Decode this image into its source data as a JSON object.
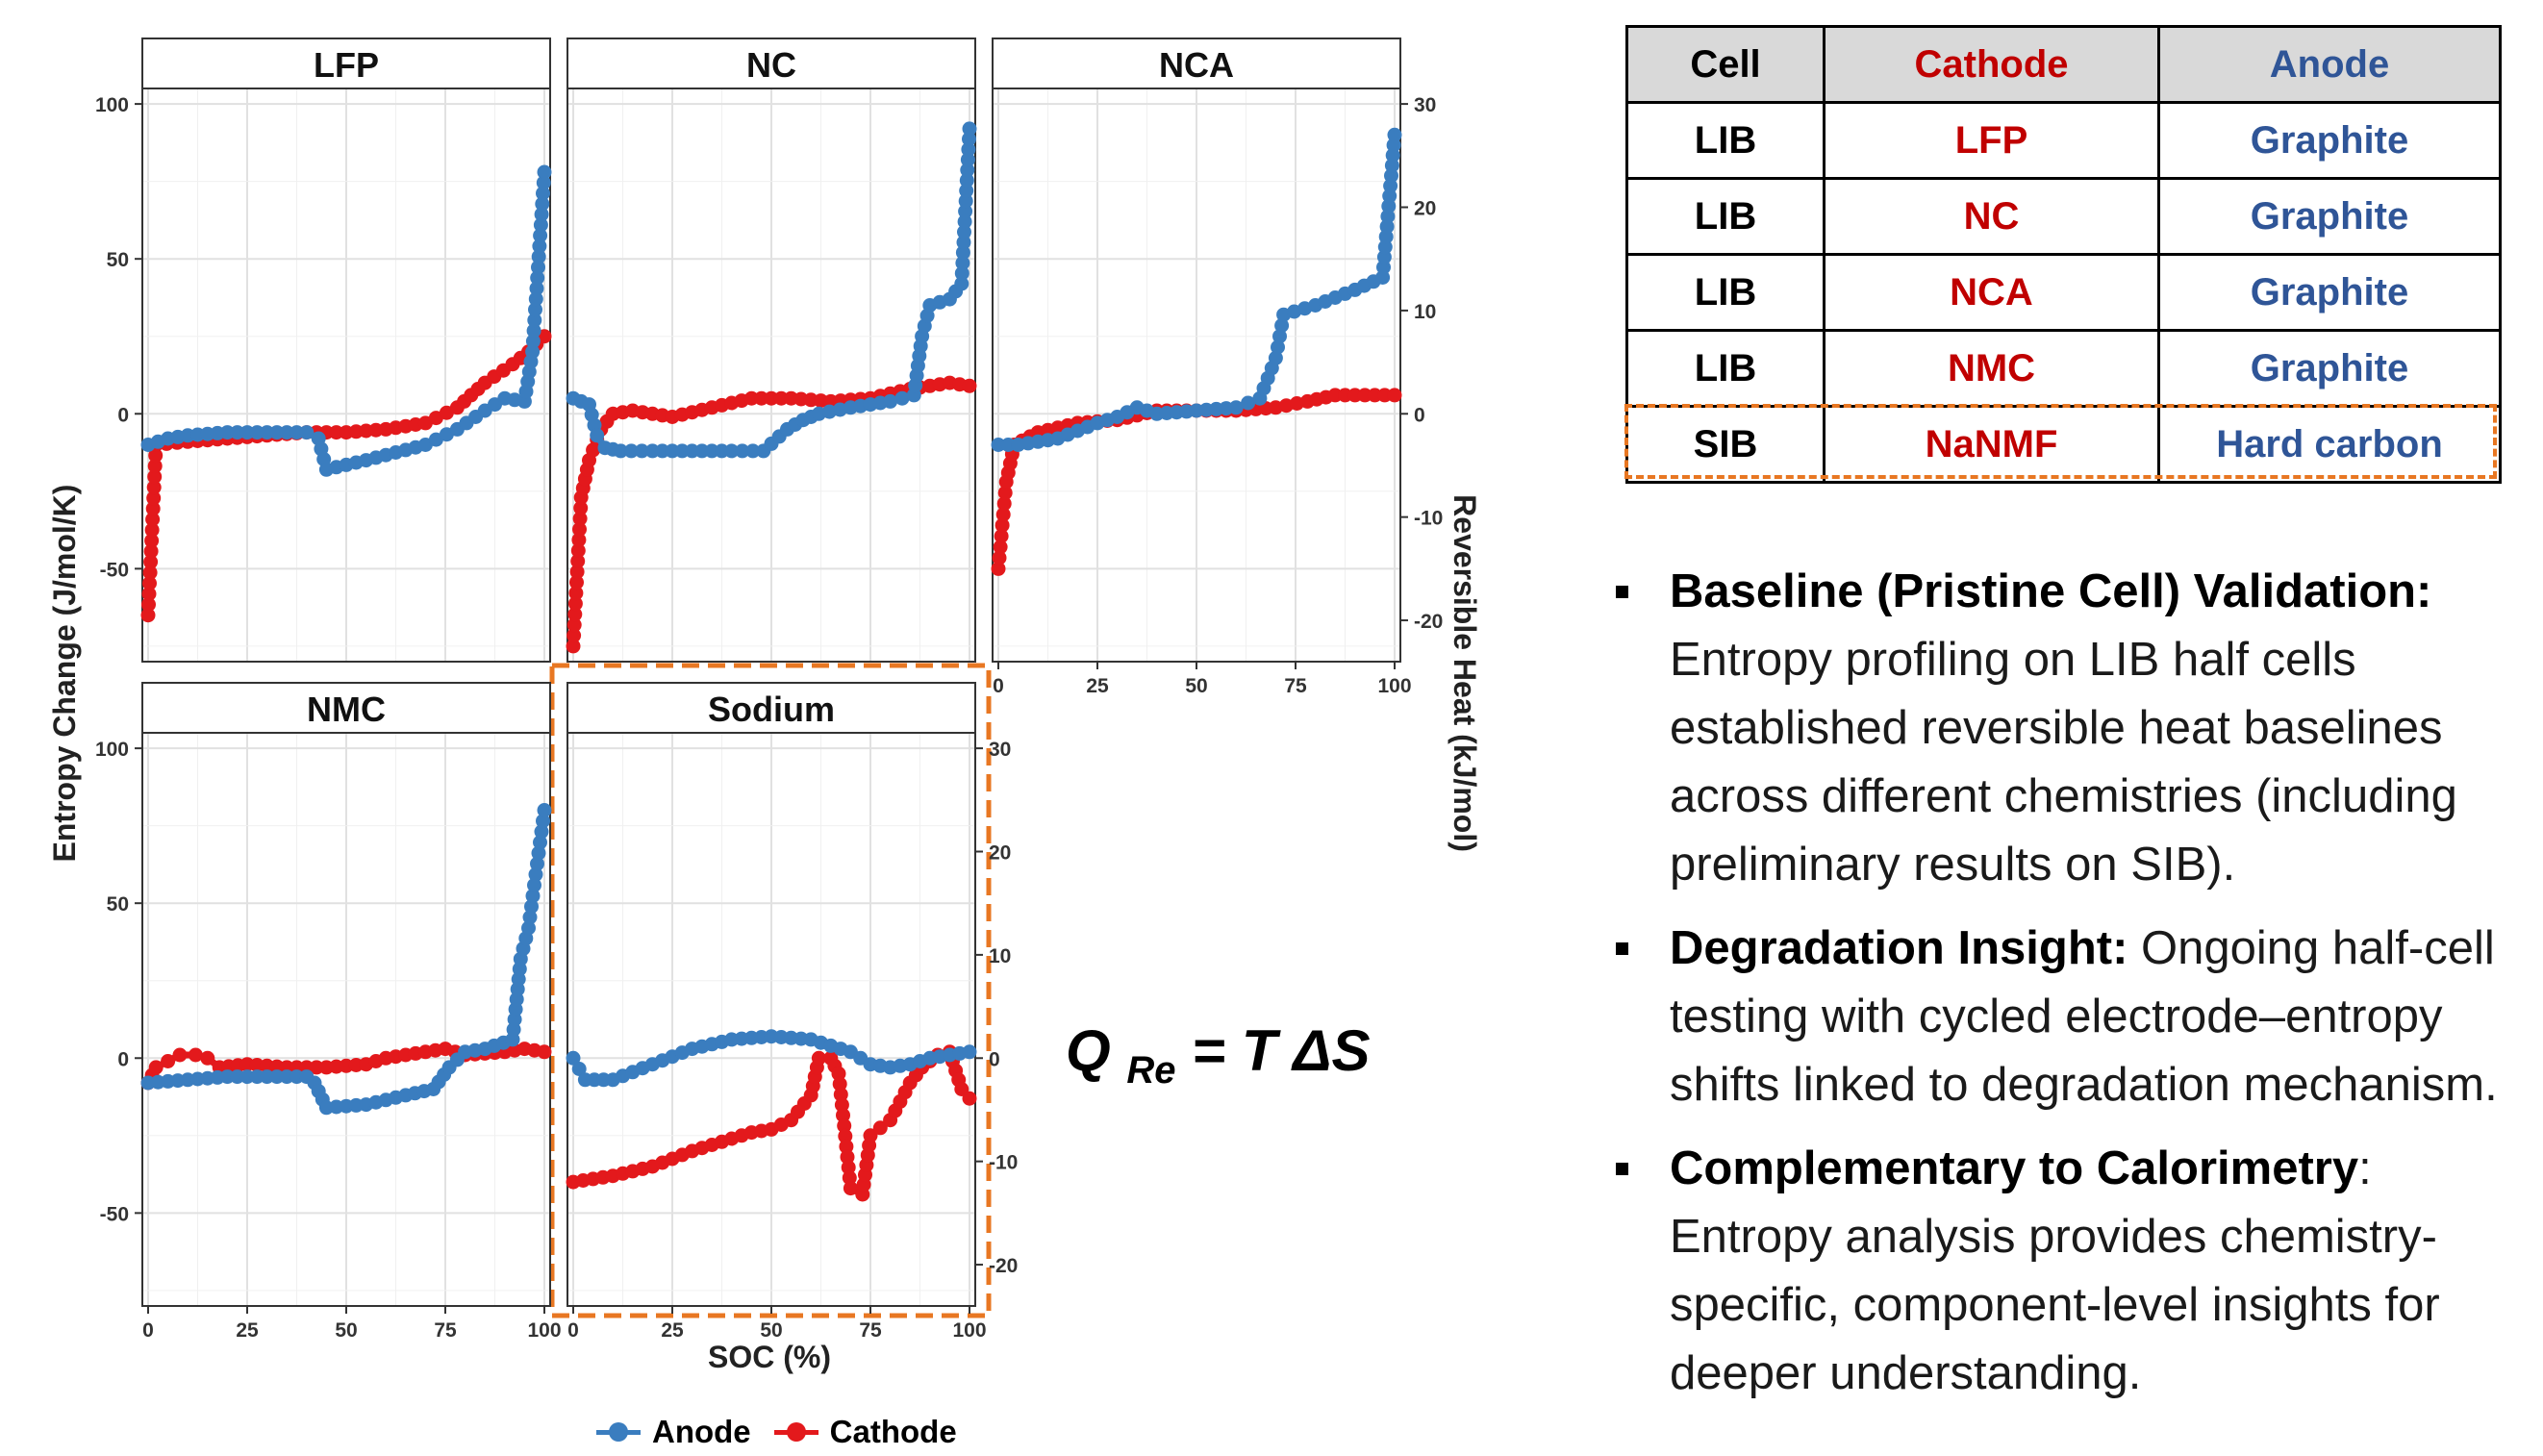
{
  "chart_data": {
    "type": "line",
    "facets": [
      "LFP",
      "NC",
      "NCA",
      "NMC",
      "Sodium"
    ],
    "x_label": "SOC (%)",
    "y_label_left": "Entropy Change (J/mol/K)",
    "y_label_right": "Reversible Heat (kJ/mol)",
    "xlim": [
      0,
      100
    ],
    "ylim_left": [
      -80,
      105
    ],
    "ylim_right": [
      -24,
      31.5
    ],
    "x_ticks": [
      0,
      25,
      50,
      75,
      100
    ],
    "y_ticks_left": [
      -50,
      0,
      50,
      100
    ],
    "y_ticks_right": [
      -20,
      -10,
      0,
      10,
      20,
      30
    ],
    "grid": true,
    "legend_position": "bottom",
    "series_names": [
      "Anode",
      "Cathode"
    ],
    "colors": {
      "Anode": "#3a7dbf",
      "Cathode": "#e3191c",
      "highlight": "#e87722"
    },
    "series": {
      "LFP": {
        "Anode": [
          [
            0,
            -10
          ],
          [
            5,
            -8
          ],
          [
            10,
            -7
          ],
          [
            20,
            -6
          ],
          [
            30,
            -6
          ],
          [
            40,
            -6
          ],
          [
            43,
            -8
          ],
          [
            45,
            -18
          ],
          [
            55,
            -15
          ],
          [
            70,
            -10
          ],
          [
            78,
            -5
          ],
          [
            85,
            1
          ],
          [
            90,
            5
          ],
          [
            95,
            4
          ],
          [
            97,
            20
          ],
          [
            100,
            78
          ]
        ],
        "Cathode": [
          [
            0,
            -65
          ],
          [
            2,
            -10
          ],
          [
            10,
            -9
          ],
          [
            20,
            -8
          ],
          [
            30,
            -7
          ],
          [
            40,
            -6
          ],
          [
            50,
            -6
          ],
          [
            60,
            -5
          ],
          [
            70,
            -3
          ],
          [
            78,
            2
          ],
          [
            85,
            10
          ],
          [
            92,
            16
          ],
          [
            96,
            20
          ],
          [
            100,
            25
          ]
        ]
      },
      "NC": {
        "Anode": [
          [
            0,
            5
          ],
          [
            4,
            3
          ],
          [
            6,
            -7
          ],
          [
            8,
            -11
          ],
          [
            12,
            -12
          ],
          [
            20,
            -12
          ],
          [
            30,
            -12
          ],
          [
            40,
            -12
          ],
          [
            48,
            -12
          ],
          [
            54,
            -5
          ],
          [
            58,
            -2
          ],
          [
            62,
            0
          ],
          [
            70,
            2
          ],
          [
            80,
            4
          ],
          [
            86,
            6
          ],
          [
            88,
            25
          ],
          [
            90,
            35
          ],
          [
            95,
            37
          ],
          [
            98,
            42
          ],
          [
            100,
            92
          ]
        ],
        "Cathode": [
          [
            0,
            -75
          ],
          [
            2,
            -27
          ],
          [
            4,
            -15
          ],
          [
            7,
            -5
          ],
          [
            10,
            0
          ],
          [
            15,
            1
          ],
          [
            25,
            -1
          ],
          [
            35,
            2
          ],
          [
            45,
            5
          ],
          [
            55,
            5
          ],
          [
            65,
            4
          ],
          [
            75,
            5
          ],
          [
            85,
            8
          ],
          [
            95,
            10
          ],
          [
            100,
            9
          ]
        ]
      },
      "NCA": {
        "Anode": [
          [
            0,
            -10
          ],
          [
            5,
            -10
          ],
          [
            15,
            -8
          ],
          [
            25,
            -3
          ],
          [
            30,
            -1
          ],
          [
            35,
            2
          ],
          [
            40,
            0
          ],
          [
            50,
            1
          ],
          [
            60,
            2
          ],
          [
            66,
            5
          ],
          [
            70,
            18
          ],
          [
            72,
            32
          ],
          [
            80,
            35
          ],
          [
            90,
            40
          ],
          [
            97,
            44
          ],
          [
            100,
            90
          ]
        ],
        "Cathode": [
          [
            0,
            -50
          ],
          [
            2,
            -22
          ],
          [
            4,
            -10
          ],
          [
            10,
            -6
          ],
          [
            20,
            -3
          ],
          [
            30,
            -2
          ],
          [
            40,
            1
          ],
          [
            50,
            1
          ],
          [
            60,
            1
          ],
          [
            70,
            2
          ],
          [
            78,
            4
          ],
          [
            85,
            6
          ],
          [
            95,
            6
          ],
          [
            100,
            6
          ]
        ]
      },
      "NMC": {
        "Anode": [
          [
            0,
            -8
          ],
          [
            10,
            -7
          ],
          [
            20,
            -6
          ],
          [
            30,
            -6
          ],
          [
            40,
            -6
          ],
          [
            42,
            -8
          ],
          [
            45,
            -16
          ],
          [
            55,
            -15
          ],
          [
            65,
            -12
          ],
          [
            72,
            -10
          ],
          [
            76,
            -3
          ],
          [
            80,
            2
          ],
          [
            85,
            3
          ],
          [
            92,
            6
          ],
          [
            94,
            32
          ],
          [
            96,
            42
          ],
          [
            100,
            80
          ]
        ],
        "Cathode": [
          [
            0,
            -8
          ],
          [
            2,
            -3
          ],
          [
            5,
            -1
          ],
          [
            8,
            1
          ],
          [
            12,
            1
          ],
          [
            15,
            0
          ],
          [
            18,
            -3
          ],
          [
            25,
            -2
          ],
          [
            35,
            -3
          ],
          [
            45,
            -3
          ],
          [
            55,
            -2
          ],
          [
            60,
            0
          ],
          [
            70,
            2
          ],
          [
            75,
            3
          ],
          [
            80,
            1
          ],
          [
            90,
            2
          ],
          [
            95,
            3
          ],
          [
            100,
            2
          ]
        ]
      },
      "Sodium": {
        "Anode": [
          [
            0,
            0
          ],
          [
            3,
            -7
          ],
          [
            10,
            -7
          ],
          [
            20,
            -2
          ],
          [
            30,
            3
          ],
          [
            40,
            6
          ],
          [
            50,
            7
          ],
          [
            60,
            6
          ],
          [
            70,
            2
          ],
          [
            75,
            -2
          ],
          [
            80,
            -3
          ],
          [
            85,
            -2
          ],
          [
            90,
            0
          ],
          [
            95,
            1
          ],
          [
            100,
            2
          ]
        ],
        "Cathode": [
          [
            0,
            -40
          ],
          [
            10,
            -38
          ],
          [
            20,
            -35
          ],
          [
            30,
            -30
          ],
          [
            40,
            -26
          ],
          [
            45,
            -24
          ],
          [
            50,
            -23
          ],
          [
            55,
            -20
          ],
          [
            60,
            -12
          ],
          [
            62,
            0
          ],
          [
            65,
            0
          ],
          [
            67,
            -5
          ],
          [
            70,
            -42
          ],
          [
            73,
            -44
          ],
          [
            75,
            -25
          ],
          [
            80,
            -20
          ],
          [
            85,
            -8
          ],
          [
            88,
            -3
          ],
          [
            92,
            1
          ],
          [
            95,
            2
          ],
          [
            98,
            -10
          ],
          [
            100,
            -13
          ]
        ]
      }
    }
  },
  "equation": {
    "lhs": "Q",
    "subscript": "Re",
    "rhs": "= T ΔS"
  },
  "cell_table": {
    "headers": [
      "Cell",
      "Cathode",
      "Anode"
    ],
    "rows": [
      [
        "LIB",
        "LFP",
        "Graphite"
      ],
      [
        "LIB",
        "NC",
        "Graphite"
      ],
      [
        "LIB",
        "NCA",
        "Graphite"
      ],
      [
        "LIB",
        "NMC",
        "Graphite"
      ],
      [
        "SIB",
        "NaNMF",
        "Hard carbon"
      ]
    ]
  },
  "bullets": [
    {
      "title": "Baseline (Pristine Cell) Validation:",
      "text": " Entropy profiling on LIB half cells established reversible heat baselines across different chemistries (including preliminary results on SIB)."
    },
    {
      "title": "Degradation Insight:",
      "text": " Ongoing half-cell testing with cycled electrode–entropy shifts linked to degradation mechanism."
    },
    {
      "title": "Complementary to Calorimetry",
      "text": ": Entropy analysis provides chemistry-specific, component-level insights for deeper understanding."
    }
  ]
}
